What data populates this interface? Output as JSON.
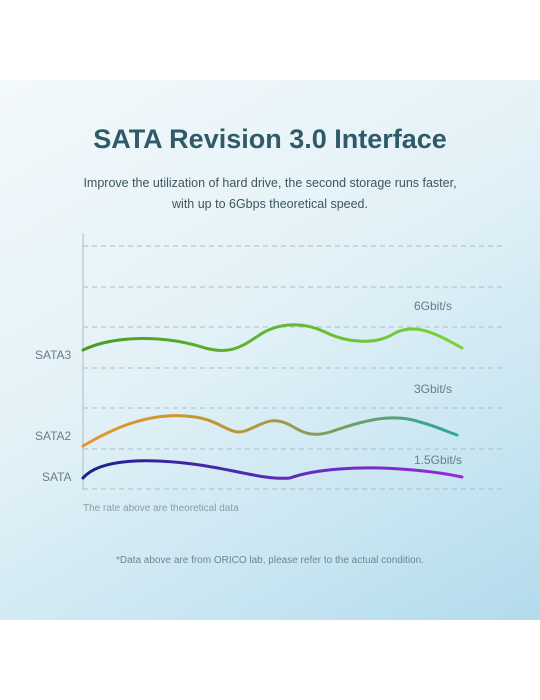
{
  "header": {
    "title": "SATA Revision 3.0 Interface",
    "subtitle_line1": "Improve the utilization of hard drive, the second storage runs faster,",
    "subtitle_line2": "with up to 6Gbps theoretical speed."
  },
  "chart": {
    "interfaces": [
      "SATA3",
      "SATA2",
      "SATA"
    ],
    "speeds": [
      "6Gbit/s",
      "3Gbit/s",
      "1.5Gbit/s"
    ],
    "colors": {
      "sata3": [
        "#4a9a2a",
        "#7ed23a"
      ],
      "sata2": [
        "#e6962a",
        "#2aa89a"
      ],
      "sata": [
        "#1a1f8c",
        "#9a2ad8"
      ],
      "grid": "#a9bec7",
      "axis": "#a9bec7"
    },
    "note": "The rate above are theoretical data"
  },
  "footnote": "*Data above are from ORICO lab, please refer to the actual condition."
}
